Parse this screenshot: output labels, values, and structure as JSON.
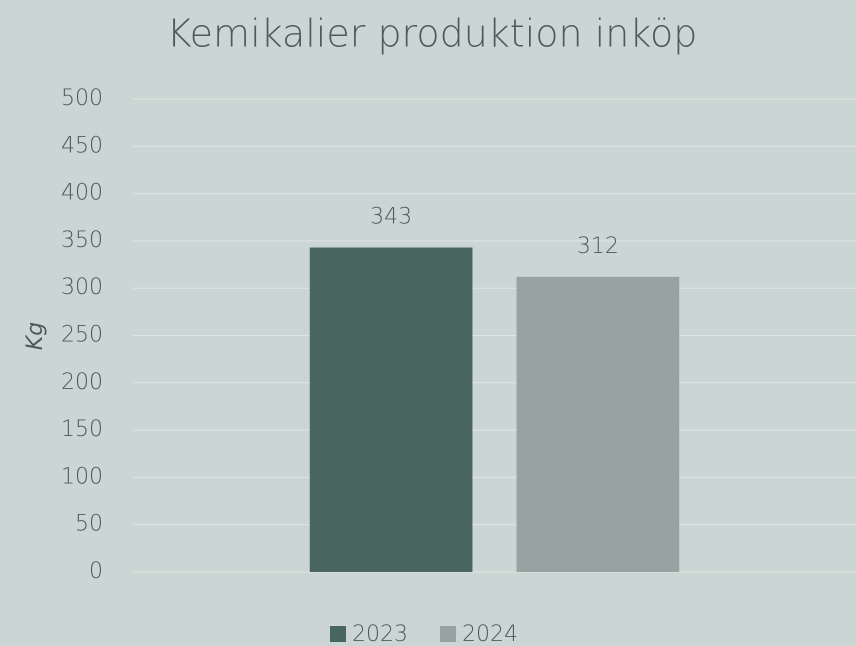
{
  "chart_data": {
    "type": "bar",
    "title": "Kemikalier produktion inköp",
    "y_label": "Kg",
    "categories": [
      null
    ],
    "series": [
      {
        "name": "2023",
        "color": "#4a6660",
        "values": [
          343
        ]
      },
      {
        "name": "2024",
        "color": "#96a3a0",
        "values": [
          312
        ]
      }
    ],
    "ylim": [
      0,
      500
    ],
    "yticks": [
      0,
      50,
      100,
      150,
      200,
      250,
      300,
      350,
      400,
      450,
      500
    ],
    "grid": true,
    "legend": "bottom"
  }
}
